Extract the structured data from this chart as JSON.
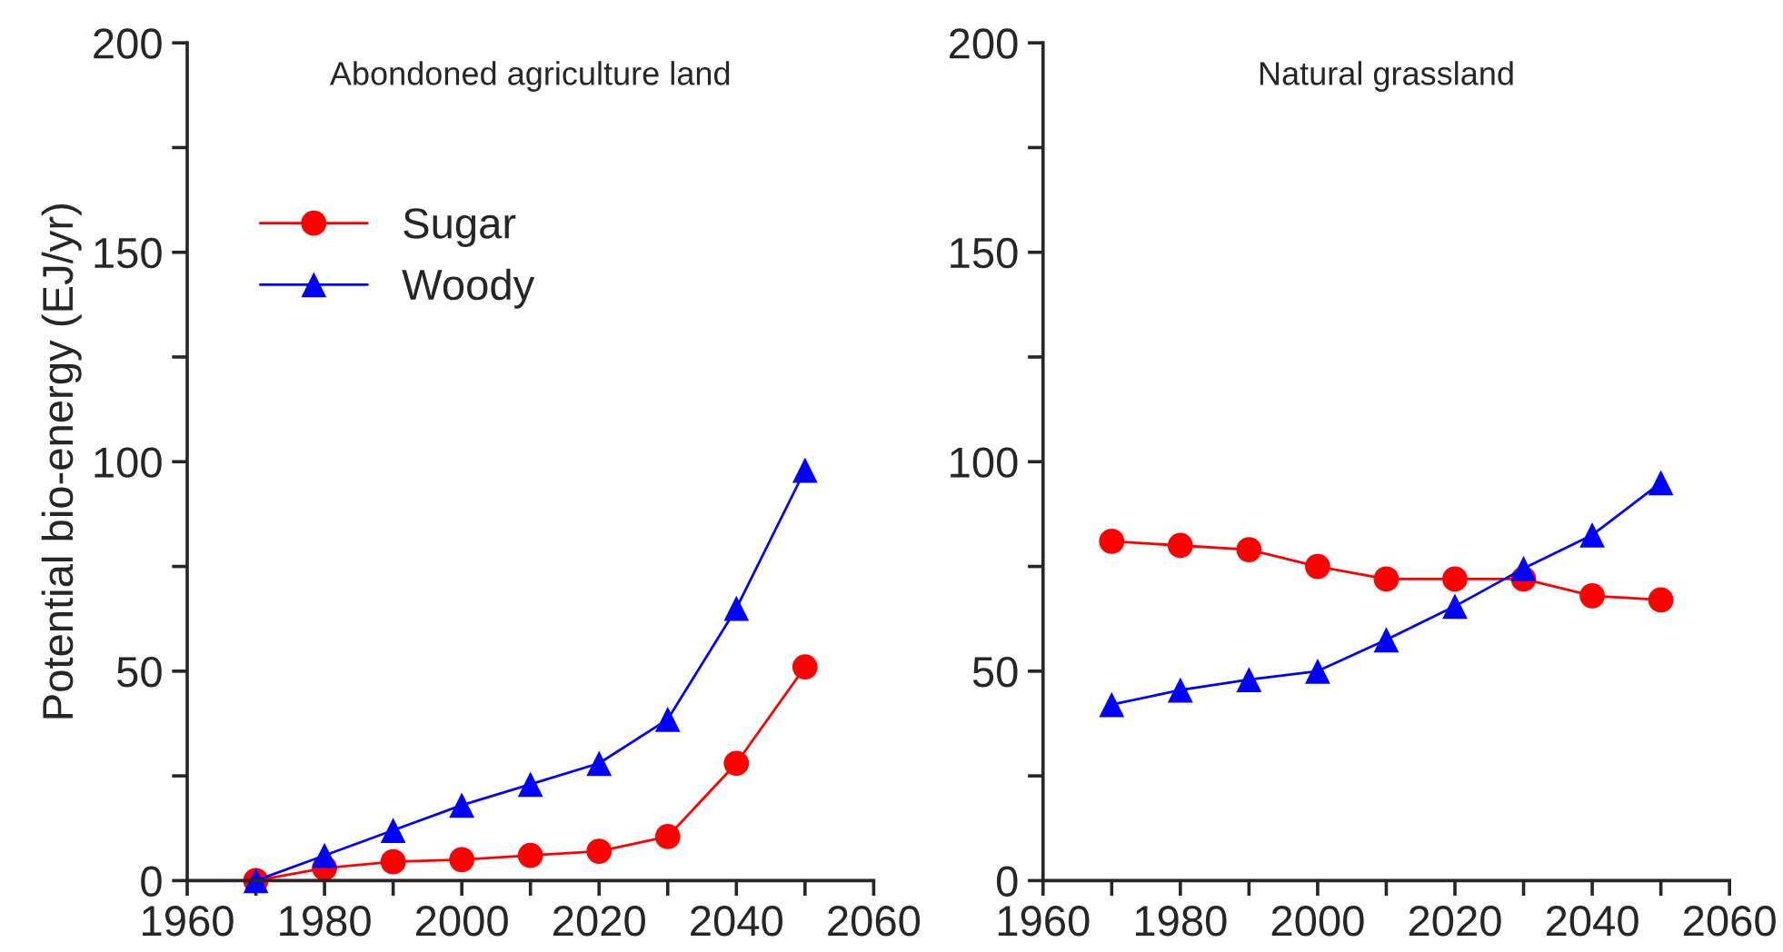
{
  "chart_data": [
    {
      "type": "line",
      "title": "Abondoned agriculture land",
      "ylabel": "Potential bio-energy (EJ/yr)",
      "x": [
        1970,
        1980,
        1990,
        2000,
        2010,
        2020,
        2030,
        2040,
        2050
      ],
      "series": [
        {
          "name": "Sugar",
          "color": "#ff0000",
          "marker": "circle",
          "values": [
            0,
            3,
            4.5,
            5,
            6,
            7,
            10.5,
            28,
            51
          ]
        },
        {
          "name": "Woody",
          "color": "#0000ff",
          "marker": "triangle",
          "values": [
            0,
            6,
            12,
            18,
            23,
            28,
            38.5,
            65,
            98
          ]
        }
      ],
      "xlim": [
        1960,
        2060
      ],
      "xticks": [
        1960,
        {
          "value": 1970,
          "label": null
        },
        1980,
        {
          "value": 1990,
          "label": null
        },
        2000,
        {
          "value": 2010,
          "label": null
        },
        2020,
        {
          "value": 2030,
          "label": null
        },
        2040,
        {
          "value": 2050,
          "label": null
        },
        2060
      ],
      "ylim": [
        0,
        200
      ],
      "yticks": [
        0,
        {
          "value": 25,
          "label": null
        },
        50,
        {
          "value": 75,
          "label": null
        },
        100,
        {
          "value": 125,
          "label": null
        },
        150,
        {
          "value": 175,
          "label": null
        },
        200
      ],
      "legend": "top left",
      "grid": false,
      "line_style": "solid"
    },
    {
      "type": "line",
      "title": "Natural grassland",
      "x": [
        1970,
        1980,
        1990,
        2000,
        2010,
        2020,
        2030,
        2040,
        2050
      ],
      "series": [
        {
          "color": "#ff0000",
          "marker": "circle",
          "values": [
            81,
            80,
            79,
            75,
            72,
            72,
            72,
            68,
            67
          ]
        },
        {
          "color": "#0000ff",
          "marker": "triangle",
          "values": [
            42,
            45.5,
            48,
            50,
            57.5,
            65.5,
            74.5,
            82.5,
            95
          ]
        }
      ],
      "xlim": [
        1960,
        2060
      ],
      "xticks": [
        1960,
        {
          "value": 1970,
          "label": null
        },
        1980,
        {
          "value": 1990,
          "label": null
        },
        2000,
        {
          "value": 2010,
          "label": null
        },
        2020,
        {
          "value": 2030,
          "label": null
        },
        2040,
        {
          "value": 2050,
          "label": null
        },
        2060
      ],
      "ylim": [
        0,
        200
      ],
      "yticks": [
        0,
        {
          "value": 25,
          "label": null
        },
        50,
        {
          "value": 75,
          "label": null
        },
        100,
        {
          "value": 125,
          "label": null
        },
        150,
        {
          "value": 175,
          "label": null
        },
        200
      ],
      "grid": false,
      "line_style": "solid"
    }
  ]
}
